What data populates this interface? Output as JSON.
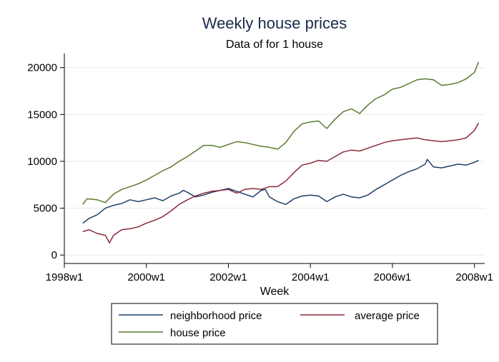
{
  "chart_data": {
    "type": "line",
    "title": "Weekly house prices",
    "subtitle": "Data of for 1 house",
    "xlabel": "Week",
    "ylabel": "",
    "x_ticks": [
      {
        "label": "1998w1",
        "value": 1998.0
      },
      {
        "label": "2000w1",
        "value": 2000.0
      },
      {
        "label": "2002w1",
        "value": 2002.0
      },
      {
        "label": "2004w1",
        "value": 2004.0
      },
      {
        "label": "2006w1",
        "value": 2006.0
      },
      {
        "label": "2008w1",
        "value": 2008.0
      }
    ],
    "y_ticks": [
      0,
      5000,
      10000,
      15000,
      20000
    ],
    "xlim": [
      1998.0,
      2008.25
    ],
    "ylim": [
      -900,
      21500
    ],
    "grid": true,
    "legend_position": "bottom",
    "series": [
      {
        "name": "neighborhood price",
        "color": "#1f3f66",
        "points": [
          [
            1998.45,
            3400
          ],
          [
            1998.6,
            3900
          ],
          [
            1998.8,
            4300
          ],
          [
            1999.0,
            5000
          ],
          [
            1999.2,
            5300
          ],
          [
            1999.4,
            5500
          ],
          [
            1999.6,
            5900
          ],
          [
            1999.8,
            5700
          ],
          [
            2000.0,
            5900
          ],
          [
            2000.2,
            6100
          ],
          [
            2000.4,
            5800
          ],
          [
            2000.6,
            6300
          ],
          [
            2000.8,
            6600
          ],
          [
            2000.9,
            6900
          ],
          [
            2001.0,
            6700
          ],
          [
            2001.2,
            6200
          ],
          [
            2001.4,
            6400
          ],
          [
            2001.6,
            6700
          ],
          [
            2001.8,
            6900
          ],
          [
            2002.0,
            7100
          ],
          [
            2002.2,
            6800
          ],
          [
            2002.4,
            6500
          ],
          [
            2002.6,
            6200
          ],
          [
            2002.8,
            6900
          ],
          [
            2002.9,
            7000
          ],
          [
            2003.0,
            6200
          ],
          [
            2003.2,
            5700
          ],
          [
            2003.4,
            5400
          ],
          [
            2003.6,
            6000
          ],
          [
            2003.8,
            6300
          ],
          [
            2004.0,
            6400
          ],
          [
            2004.2,
            6300
          ],
          [
            2004.4,
            5700
          ],
          [
            2004.6,
            6200
          ],
          [
            2004.8,
            6500
          ],
          [
            2005.0,
            6200
          ],
          [
            2005.2,
            6100
          ],
          [
            2005.4,
            6400
          ],
          [
            2005.6,
            7000
          ],
          [
            2005.8,
            7500
          ],
          [
            2006.0,
            8000
          ],
          [
            2006.2,
            8500
          ],
          [
            2006.4,
            8900
          ],
          [
            2006.6,
            9200
          ],
          [
            2006.8,
            9700
          ],
          [
            2006.85,
            10200
          ],
          [
            2007.0,
            9400
          ],
          [
            2007.2,
            9300
          ],
          [
            2007.4,
            9500
          ],
          [
            2007.6,
            9700
          ],
          [
            2007.8,
            9600
          ],
          [
            2008.0,
            9900
          ],
          [
            2008.1,
            10100
          ]
        ]
      },
      {
        "name": "average price",
        "color": "#8b2a3a",
        "points": [
          [
            1998.45,
            2500
          ],
          [
            1998.6,
            2700
          ],
          [
            1998.8,
            2300
          ],
          [
            1999.0,
            2100
          ],
          [
            1999.1,
            1300
          ],
          [
            1999.2,
            2100
          ],
          [
            1999.4,
            2700
          ],
          [
            1999.6,
            2800
          ],
          [
            1999.8,
            3000
          ],
          [
            2000.0,
            3400
          ],
          [
            2000.2,
            3700
          ],
          [
            2000.4,
            4100
          ],
          [
            2000.6,
            4700
          ],
          [
            2000.8,
            5400
          ],
          [
            2001.0,
            5900
          ],
          [
            2001.2,
            6300
          ],
          [
            2001.4,
            6600
          ],
          [
            2001.6,
            6800
          ],
          [
            2001.8,
            6900
          ],
          [
            2002.0,
            7000
          ],
          [
            2002.2,
            6600
          ],
          [
            2002.4,
            7000
          ],
          [
            2002.6,
            7100
          ],
          [
            2002.8,
            7000
          ],
          [
            2003.0,
            7300
          ],
          [
            2003.2,
            7300
          ],
          [
            2003.4,
            7900
          ],
          [
            2003.6,
            8800
          ],
          [
            2003.8,
            9600
          ],
          [
            2004.0,
            9800
          ],
          [
            2004.2,
            10100
          ],
          [
            2004.4,
            10000
          ],
          [
            2004.6,
            10500
          ],
          [
            2004.8,
            11000
          ],
          [
            2005.0,
            11200
          ],
          [
            2005.2,
            11100
          ],
          [
            2005.4,
            11400
          ],
          [
            2005.6,
            11700
          ],
          [
            2005.8,
            12000
          ],
          [
            2006.0,
            12200
          ],
          [
            2006.2,
            12300
          ],
          [
            2006.4,
            12400
          ],
          [
            2006.6,
            12500
          ],
          [
            2006.8,
            12300
          ],
          [
            2007.0,
            12200
          ],
          [
            2007.2,
            12100
          ],
          [
            2007.4,
            12200
          ],
          [
            2007.6,
            12300
          ],
          [
            2007.8,
            12500
          ],
          [
            2008.0,
            13300
          ],
          [
            2008.1,
            14100
          ]
        ]
      },
      {
        "name": "house price",
        "color": "#5a7a30",
        "points": [
          [
            1998.45,
            5400
          ],
          [
            1998.55,
            6000
          ],
          [
            1998.8,
            5900
          ],
          [
            1999.0,
            5600
          ],
          [
            1999.2,
            6500
          ],
          [
            1999.4,
            7000
          ],
          [
            1999.6,
            7300
          ],
          [
            1999.8,
            7600
          ],
          [
            2000.0,
            8000
          ],
          [
            2000.2,
            8500
          ],
          [
            2000.4,
            9000
          ],
          [
            2000.6,
            9400
          ],
          [
            2000.8,
            10000
          ],
          [
            2001.0,
            10500
          ],
          [
            2001.2,
            11100
          ],
          [
            2001.4,
            11700
          ],
          [
            2001.6,
            11700
          ],
          [
            2001.8,
            11500
          ],
          [
            2002.0,
            11800
          ],
          [
            2002.2,
            12100
          ],
          [
            2002.4,
            12000
          ],
          [
            2002.6,
            11800
          ],
          [
            2002.8,
            11600
          ],
          [
            2003.0,
            11500
          ],
          [
            2003.2,
            11300
          ],
          [
            2003.4,
            12000
          ],
          [
            2003.6,
            13200
          ],
          [
            2003.8,
            14000
          ],
          [
            2004.0,
            14200
          ],
          [
            2004.2,
            14300
          ],
          [
            2004.4,
            13500
          ],
          [
            2004.6,
            14500
          ],
          [
            2004.8,
            15300
          ],
          [
            2005.0,
            15600
          ],
          [
            2005.2,
            15100
          ],
          [
            2005.4,
            16000
          ],
          [
            2005.6,
            16700
          ],
          [
            2005.8,
            17100
          ],
          [
            2006.0,
            17700
          ],
          [
            2006.2,
            17900
          ],
          [
            2006.4,
            18300
          ],
          [
            2006.6,
            18700
          ],
          [
            2006.8,
            18800
          ],
          [
            2007.0,
            18700
          ],
          [
            2007.2,
            18100
          ],
          [
            2007.4,
            18200
          ],
          [
            2007.6,
            18400
          ],
          [
            2007.8,
            18800
          ],
          [
            2008.0,
            19500
          ],
          [
            2008.1,
            20600
          ]
        ]
      }
    ]
  }
}
